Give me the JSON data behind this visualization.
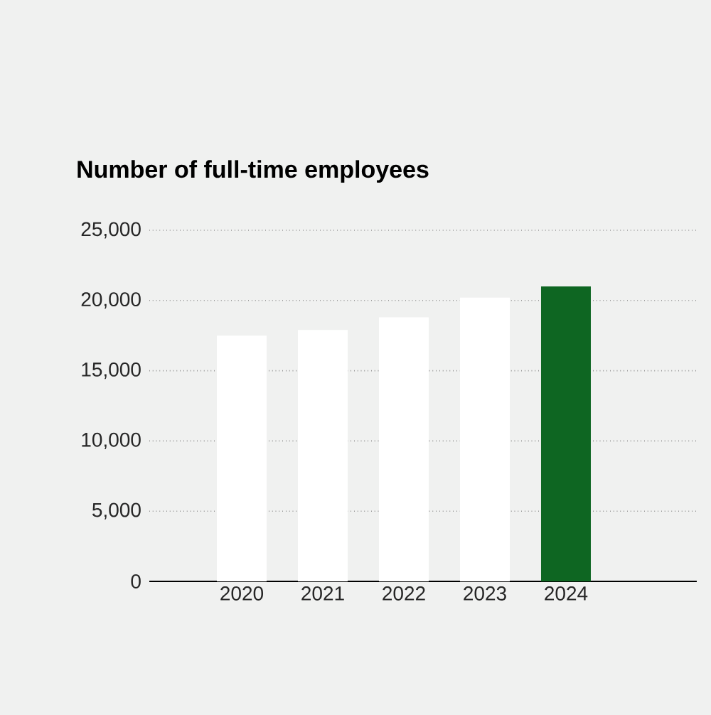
{
  "chart_data": {
    "type": "bar",
    "title": "Number of full-time employees",
    "categories": [
      "2020",
      "2021",
      "2022",
      "2023",
      "2024"
    ],
    "values": [
      17500,
      17900,
      18800,
      20200,
      21000
    ],
    "colors": [
      "#ffffff",
      "#ffffff",
      "#ffffff",
      "#ffffff",
      "#0e6622"
    ],
    "ylim": [
      0,
      25000
    ],
    "yticks": [
      {
        "value": 0,
        "label": "0"
      },
      {
        "value": 5000,
        "label": "5,000"
      },
      {
        "value": 10000,
        "label": "10,000"
      },
      {
        "value": 15000,
        "label": "15,000"
      },
      {
        "value": 20000,
        "label": "20,000"
      },
      {
        "value": 25000,
        "label": "25,000"
      }
    ],
    "grid": "y"
  }
}
